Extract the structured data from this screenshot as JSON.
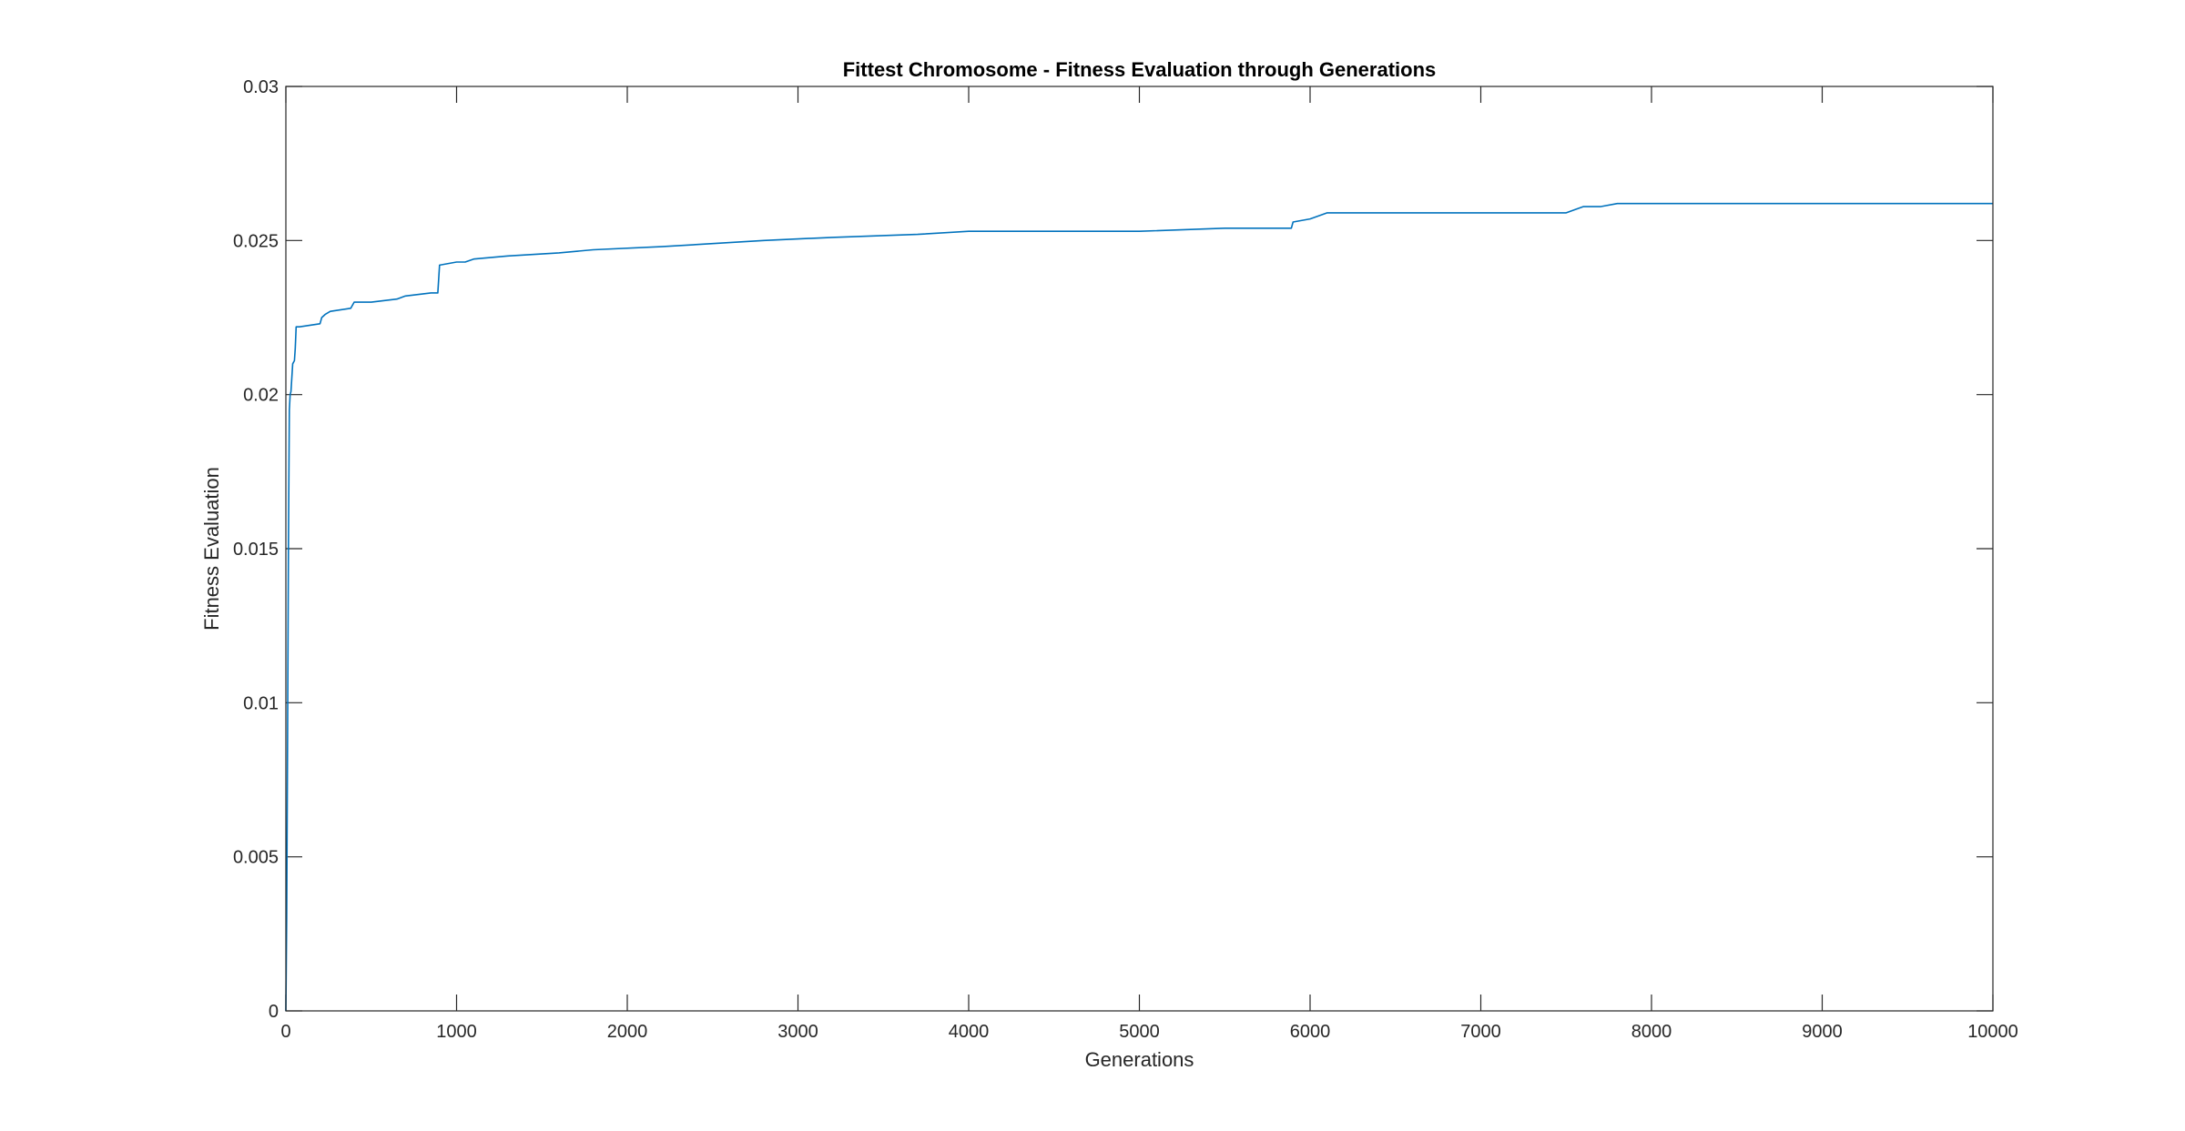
{
  "chart_data": {
    "type": "line",
    "title": "Fittest Chromosome - Fitness Evaluation through Generations",
    "xlabel": "Generations",
    "ylabel": "Fitness Evaluation",
    "xlim": [
      0,
      10000
    ],
    "ylim": [
      0,
      0.03
    ],
    "xticks": [
      0,
      1000,
      2000,
      3000,
      4000,
      5000,
      6000,
      7000,
      8000,
      9000,
      10000
    ],
    "xtick_labels": [
      "0",
      "1000",
      "2000",
      "3000",
      "4000",
      "5000",
      "6000",
      "7000",
      "8000",
      "9000",
      "10000"
    ],
    "yticks": [
      0,
      0.005,
      0.01,
      0.015,
      0.02,
      0.025,
      0.03
    ],
    "ytick_labels": [
      "0",
      "0.005",
      "0.01",
      "0.015",
      "0.02",
      "0.025",
      "0.03"
    ],
    "grid": false,
    "legend": "none",
    "line_color": "#0072BD",
    "series": [
      {
        "x": [
          0,
          5,
          10,
          15,
          20,
          25,
          30,
          40,
          50,
          55,
          60,
          70,
          80,
          200,
          210,
          230,
          260,
          380,
          400,
          500,
          650,
          700,
          850,
          880,
          890,
          900,
          1000,
          1050,
          1100,
          1300,
          1600,
          1800,
          2200,
          2500,
          2800,
          3200,
          3700,
          4000,
          4500,
          5000,
          5500,
          5880,
          5890,
          5900,
          6000,
          6050,
          6100,
          6500,
          7000,
          7500,
          7550,
          7600,
          7700,
          7800,
          8000,
          8500,
          9000,
          9500,
          10000
        ],
        "y": [
          0,
          0.003,
          0.009,
          0.015,
          0.0195,
          0.02,
          0.0201,
          0.021,
          0.0211,
          0.0215,
          0.0222,
          0.0222,
          0.0222,
          0.0223,
          0.0225,
          0.0226,
          0.0227,
          0.0228,
          0.023,
          0.023,
          0.0231,
          0.0232,
          0.0233,
          0.0233,
          0.0233,
          0.0242,
          0.0243,
          0.0243,
          0.0244,
          0.0245,
          0.0246,
          0.0247,
          0.0248,
          0.0249,
          0.025,
          0.0251,
          0.0252,
          0.0253,
          0.0253,
          0.0253,
          0.0254,
          0.0254,
          0.0254,
          0.0256,
          0.0257,
          0.0258,
          0.0259,
          0.0259,
          0.0259,
          0.0259,
          0.026,
          0.0261,
          0.0261,
          0.0262,
          0.0262,
          0.0262,
          0.0262,
          0.0262,
          0.0262
        ]
      }
    ]
  }
}
